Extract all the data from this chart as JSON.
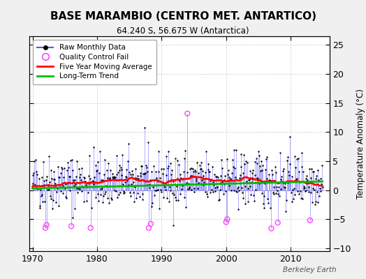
{
  "title": "BASE MARAMBIO (CENTRO MET. ANTARTICO)",
  "subtitle": "64.240 S, 56.675 W (Antarctica)",
  "ylabel": "Temperature Anomaly (°C)",
  "credit": "Berkeley Earth",
  "xlim": [
    1969.5,
    2016.0
  ],
  "ylim": [
    -10.5,
    26.5
  ],
  "yticks": [
    -10,
    -5,
    0,
    5,
    10,
    15,
    20,
    25
  ],
  "xticks": [
    1970,
    1980,
    1990,
    2000,
    2010
  ],
  "background_color": "#f0f0f0",
  "plot_bg_color": "#ffffff",
  "bar_color": "#5555ff",
  "bar_alpha": 0.65,
  "dot_color": "#000000",
  "ma_color": "#ff0000",
  "trend_color": "#00bb00",
  "qc_color": "#ff44ff",
  "seed": 42,
  "n_months": 540,
  "start_year": 1970.0
}
